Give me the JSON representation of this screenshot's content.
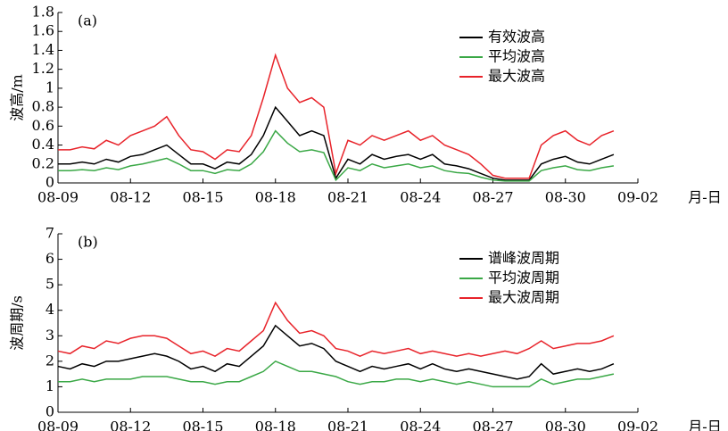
{
  "chart_data": [
    {
      "type": "line",
      "panel_label": "(a)",
      "ylabel": "波高/m",
      "xlabel": "月-日",
      "x": [
        0,
        0.5,
        1,
        1.5,
        2,
        2.5,
        3,
        3.5,
        4,
        4.5,
        5,
        5.5,
        6,
        6.5,
        7,
        7.5,
        8,
        8.5,
        9,
        9.5,
        10,
        10.5,
        11,
        11.5,
        12,
        12.5,
        13,
        13.5,
        14,
        14.5,
        15,
        15.5,
        16,
        16.5,
        17,
        17.5,
        18,
        18.5,
        19,
        19.5,
        20,
        20.5,
        21,
        21.5,
        22,
        22.5,
        23
      ],
      "xlim": [
        0,
        24
      ],
      "xticks": [
        {
          "value": 0,
          "label": "08-09"
        },
        {
          "value": 3,
          "label": "08-12"
        },
        {
          "value": 6,
          "label": "08-15"
        },
        {
          "value": 9,
          "label": "08-18"
        },
        {
          "value": 12,
          "label": "08-21"
        },
        {
          "value": 15,
          "label": "08-24"
        },
        {
          "value": 18,
          "label": "08-27"
        },
        {
          "value": 21,
          "label": "08-30"
        },
        {
          "value": 24,
          "label": "09-02"
        }
      ],
      "ylim": [
        0,
        1.8
      ],
      "yticks": [
        0,
        0.2,
        0.4,
        0.6,
        0.8,
        1.0,
        1.2,
        1.4,
        1.6,
        1.8
      ],
      "legend": "upper right",
      "series": [
        {
          "name": "有效波高",
          "color": "#000000",
          "values": [
            0.2,
            0.2,
            0.22,
            0.2,
            0.25,
            0.22,
            0.28,
            0.3,
            0.35,
            0.4,
            0.3,
            0.2,
            0.2,
            0.15,
            0.22,
            0.2,
            0.3,
            0.5,
            0.8,
            0.65,
            0.5,
            0.55,
            0.5,
            0.05,
            0.25,
            0.2,
            0.3,
            0.25,
            0.28,
            0.3,
            0.25,
            0.3,
            0.2,
            0.18,
            0.15,
            0.1,
            0.05,
            0.03,
            0.03,
            0.03,
            0.2,
            0.25,
            0.28,
            0.22,
            0.2,
            0.25,
            0.3
          ]
        },
        {
          "name": "平均波高",
          "color": "#3aa846",
          "values": [
            0.13,
            0.13,
            0.14,
            0.13,
            0.16,
            0.14,
            0.18,
            0.2,
            0.23,
            0.26,
            0.2,
            0.13,
            0.13,
            0.1,
            0.14,
            0.13,
            0.2,
            0.33,
            0.55,
            0.42,
            0.33,
            0.35,
            0.32,
            0.03,
            0.16,
            0.13,
            0.2,
            0.16,
            0.18,
            0.2,
            0.16,
            0.18,
            0.13,
            0.11,
            0.1,
            0.06,
            0.03,
            0.02,
            0.02,
            0.02,
            0.13,
            0.16,
            0.18,
            0.14,
            0.13,
            0.16,
            0.18
          ]
        },
        {
          "name": "最大波高",
          "color": "#e8232a",
          "values": [
            0.35,
            0.35,
            0.38,
            0.36,
            0.45,
            0.4,
            0.5,
            0.55,
            0.6,
            0.7,
            0.5,
            0.35,
            0.33,
            0.25,
            0.35,
            0.33,
            0.5,
            0.9,
            1.35,
            1.0,
            0.85,
            0.9,
            0.8,
            0.1,
            0.45,
            0.4,
            0.5,
            0.45,
            0.5,
            0.55,
            0.45,
            0.5,
            0.4,
            0.35,
            0.3,
            0.2,
            0.08,
            0.05,
            0.05,
            0.05,
            0.4,
            0.5,
            0.55,
            0.45,
            0.4,
            0.5,
            0.55
          ]
        }
      ]
    },
    {
      "type": "line",
      "panel_label": "(b)",
      "ylabel": "波周期/s",
      "xlabel": "月-日",
      "x": [
        0,
        0.5,
        1,
        1.5,
        2,
        2.5,
        3,
        3.5,
        4,
        4.5,
        5,
        5.5,
        6,
        6.5,
        7,
        7.5,
        8,
        8.5,
        9,
        9.5,
        10,
        10.5,
        11,
        11.5,
        12,
        12.5,
        13,
        13.5,
        14,
        14.5,
        15,
        15.5,
        16,
        16.5,
        17,
        17.5,
        18,
        18.5,
        19,
        19.5,
        20,
        20.5,
        21,
        21.5,
        22,
        22.5,
        23
      ],
      "xlim": [
        0,
        24
      ],
      "xticks": [
        {
          "value": 0,
          "label": "08-09"
        },
        {
          "value": 3,
          "label": "08-12"
        },
        {
          "value": 6,
          "label": "08-15"
        },
        {
          "value": 9,
          "label": "08-18"
        },
        {
          "value": 12,
          "label": "08-21"
        },
        {
          "value": 15,
          "label": "08-24"
        },
        {
          "value": 18,
          "label": "08-27"
        },
        {
          "value": 21,
          "label": "08-30"
        },
        {
          "value": 24,
          "label": "09-02"
        }
      ],
      "ylim": [
        0,
        7
      ],
      "yticks": [
        0,
        1,
        2,
        3,
        4,
        5,
        6,
        7
      ],
      "legend": "upper right",
      "series": [
        {
          "name": "谱峰波周期",
          "color": "#000000",
          "values": [
            1.8,
            1.7,
            1.9,
            1.8,
            2.0,
            2.0,
            2.1,
            2.2,
            2.3,
            2.2,
            2.0,
            1.7,
            1.8,
            1.6,
            1.9,
            1.8,
            2.2,
            2.6,
            3.4,
            3.0,
            2.6,
            2.7,
            2.5,
            2.0,
            1.8,
            1.6,
            1.8,
            1.7,
            1.8,
            1.9,
            1.7,
            1.9,
            1.7,
            1.6,
            1.7,
            1.6,
            1.5,
            1.4,
            1.3,
            1.4,
            1.9,
            1.5,
            1.6,
            1.7,
            1.6,
            1.7,
            1.9
          ]
        },
        {
          "name": "平均波周期",
          "color": "#3aa846",
          "values": [
            1.2,
            1.2,
            1.3,
            1.2,
            1.3,
            1.3,
            1.3,
            1.4,
            1.4,
            1.4,
            1.3,
            1.2,
            1.2,
            1.1,
            1.2,
            1.2,
            1.4,
            1.6,
            2.0,
            1.8,
            1.6,
            1.6,
            1.5,
            1.4,
            1.2,
            1.1,
            1.2,
            1.2,
            1.3,
            1.3,
            1.2,
            1.3,
            1.2,
            1.1,
            1.2,
            1.1,
            1.0,
            1.0,
            1.0,
            1.0,
            1.3,
            1.1,
            1.2,
            1.3,
            1.3,
            1.4,
            1.5
          ]
        },
        {
          "name": "最大波周期",
          "color": "#e8232a",
          "values": [
            2.4,
            2.3,
            2.6,
            2.5,
            2.8,
            2.7,
            2.9,
            3.0,
            3.0,
            2.9,
            2.6,
            2.3,
            2.4,
            2.2,
            2.5,
            2.4,
            2.8,
            3.2,
            4.3,
            3.6,
            3.1,
            3.2,
            3.0,
            2.5,
            2.4,
            2.2,
            2.4,
            2.3,
            2.4,
            2.5,
            2.3,
            2.4,
            2.3,
            2.2,
            2.3,
            2.2,
            2.3,
            2.4,
            2.3,
            2.5,
            2.8,
            2.5,
            2.6,
            2.7,
            2.7,
            2.8,
            3.0
          ]
        }
      ]
    }
  ]
}
